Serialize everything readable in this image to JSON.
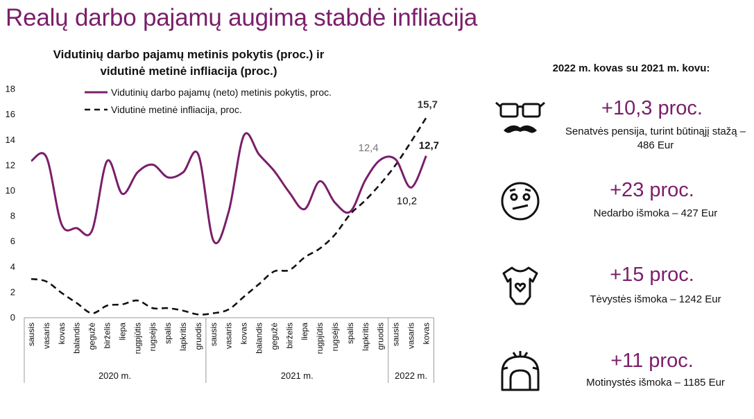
{
  "page": {
    "title": "Realų darbo pajamų augimą stabdė infliacija"
  },
  "colors": {
    "accent": "#7a1e6a",
    "series1": "#7a1e6a",
    "series2": "#111111"
  },
  "right_panel": {
    "heading": "2022 m. kovas su 2021 m. kovu:",
    "items": [
      {
        "icon": "glasses-mustache-icon",
        "value": "+10,3 proc.",
        "desc": "Senatvės pensija, turint būtinąjį stažą – 486 Eur"
      },
      {
        "icon": "confused-face-icon",
        "value": "+23 proc.",
        "desc": "Nedarbo išmoka – 427 Eur"
      },
      {
        "icon": "baby-bodysuit-icon",
        "value": "+15 proc.",
        "desc": "Tėvystės išmoka – 1242 Eur"
      },
      {
        "icon": "baby-bonnet-icon",
        "value": "+11 proc.",
        "desc": "Motinystės išmoka – 1185 Eur"
      }
    ]
  },
  "chart_data": {
    "type": "line",
    "title": "Vidutinių darbo pajamų metinis pokytis (proc.) ir vidutinė metinė infliacija (proc.)",
    "title_line1": "Vidutinių darbo pajamų metinis pokytis (proc.) ir",
    "title_line2": "vidutinė metinė infliacija (proc.)",
    "ylim": [
      0,
      18
    ],
    "yticks": [
      "0",
      "2",
      "4",
      "6",
      "8",
      "10",
      "12",
      "14",
      "16",
      "18"
    ],
    "categories": [
      "sausis",
      "vasaris",
      "kovas",
      "balandis",
      "gegužė",
      "birželis",
      "liepa",
      "rugpjūtis",
      "rugsėjis",
      "spalis",
      "lapkritis",
      "gruodis",
      "sausis",
      "vasaris",
      "kovas",
      "balandis",
      "gegužė",
      "birželis",
      "liepa",
      "rugpjūtis",
      "rugsėjis",
      "spalis",
      "lapkritis",
      "gruodis",
      "sausis",
      "vasaris",
      "kovas"
    ],
    "groups": [
      {
        "label": "2020 m.",
        "start": 0,
        "end": 11
      },
      {
        "label": "2021 m.",
        "start": 12,
        "end": 23
      },
      {
        "label": "2022 m.",
        "start": 24,
        "end": 26
      }
    ],
    "legend_position": "top-left",
    "grid": false,
    "series": [
      {
        "name": "Vidutinių darbo pajamų (neto) metinis pokytis, proc.",
        "style": "solid",
        "values": [
          12.3,
          12.6,
          7.3,
          7.0,
          6.8,
          12.3,
          9.7,
          11.4,
          12.0,
          11.0,
          11.4,
          12.8,
          6.0,
          8.3,
          14.3,
          12.8,
          11.5,
          9.8,
          8.5,
          10.7,
          9.0,
          8.3,
          10.8,
          12.4,
          12.4,
          10.2,
          12.7
        ]
      },
      {
        "name": "Vidutinė metinė infliacija, proc.",
        "style": "dashed",
        "values": [
          3.0,
          2.8,
          1.9,
          1.1,
          0.3,
          0.9,
          1.0,
          1.3,
          0.7,
          0.7,
          0.5,
          0.2,
          0.3,
          0.6,
          1.6,
          2.6,
          3.6,
          3.7,
          4.7,
          5.4,
          6.5,
          8.1,
          9.2,
          10.5,
          12.0,
          13.8,
          15.7
        ]
      }
    ],
    "annotations": [
      {
        "text": "12,4",
        "series": 0,
        "index": 23
      },
      {
        "text": "10,2",
        "series": 0,
        "index": 25
      },
      {
        "text": "12,7",
        "series": 0,
        "index": 26
      },
      {
        "text": "15,7",
        "series": 1,
        "index": 26
      }
    ]
  }
}
